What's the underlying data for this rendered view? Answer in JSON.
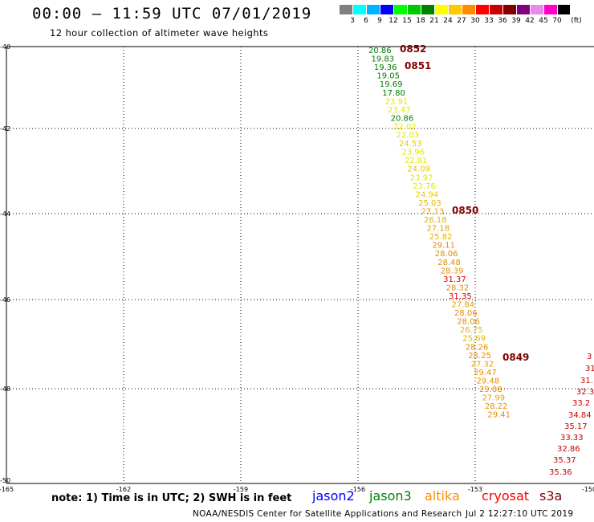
{
  "header": {
    "title": "00:00 – 11:59 UTC 07/01/2019",
    "subtitle": "12 hour collection of altimeter wave heights"
  },
  "color_scale": {
    "unit": "(ft)",
    "colors": [
      "#808080",
      "#00ffff",
      "#00b4ff",
      "#0000ff",
      "#00ff00",
      "#00c800",
      "#008000",
      "#ffff00",
      "#ffc800",
      "#ff8c00",
      "#ff0000",
      "#c80000",
      "#800000",
      "#800080",
      "#e68ce6",
      "#ff00c8",
      "#000000"
    ],
    "labels": [
      "3",
      "6",
      "9",
      "12",
      "15",
      "18",
      "21",
      "24",
      "27",
      "30",
      "33",
      "36",
      "39",
      "42",
      "45",
      "70"
    ]
  },
  "map": {
    "lat_ticks": [
      "-40",
      "-42",
      "-44",
      "-46",
      "-48",
      "-50"
    ],
    "lon_ticks": [
      "-165",
      "-162",
      "-159",
      "-156",
      "-153",
      "-150"
    ]
  },
  "tracks": [
    {
      "label_color": "#800000",
      "time_labels": [
        "0852",
        "0851",
        "0850",
        "0849"
      ],
      "points": [
        {
          "v": "20.86",
          "c": "#008000"
        },
        {
          "v": "19.83",
          "c": "#008000"
        },
        {
          "v": "19.36",
          "c": "#008000"
        },
        {
          "v": "19.05",
          "c": "#008000"
        },
        {
          "v": "19.69",
          "c": "#008000"
        },
        {
          "v": "17.80",
          "c": "#008000"
        },
        {
          "v": "23.91",
          "c": "#e6e600"
        },
        {
          "v": "23.47",
          "c": "#e6e600"
        },
        {
          "v": "20.86",
          "c": "#008000"
        },
        {
          "v": "22.02",
          "c": "#e6e600"
        },
        {
          "v": "22.03",
          "c": "#e6e600"
        },
        {
          "v": "24.53",
          "c": "#e6c800"
        },
        {
          "v": "23.96",
          "c": "#e6e600"
        },
        {
          "v": "22.81",
          "c": "#e6e600"
        },
        {
          "v": "24.09",
          "c": "#e6c800"
        },
        {
          "v": "23.97",
          "c": "#e6e600"
        },
        {
          "v": "23.76",
          "c": "#e6e600"
        },
        {
          "v": "24.94",
          "c": "#e6c800"
        },
        {
          "v": "25.03",
          "c": "#e6b400"
        },
        {
          "v": "27.13",
          "c": "#e6a000"
        },
        {
          "v": "26.18",
          "c": "#e6b400"
        },
        {
          "v": "27.18",
          "c": "#e6a000"
        },
        {
          "v": "25.82",
          "c": "#e6b400"
        },
        {
          "v": "29.11",
          "c": "#e68c00"
        },
        {
          "v": "28.06",
          "c": "#e68c00"
        },
        {
          "v": "28.48",
          "c": "#e68c00"
        },
        {
          "v": "28.39",
          "c": "#e68c00"
        },
        {
          "v": "31.37",
          "c": "#e00000"
        },
        {
          "v": "28.32",
          "c": "#e68c00"
        },
        {
          "v": "31.35",
          "c": "#e00000"
        },
        {
          "v": "27.84",
          "c": "#e6a000"
        },
        {
          "v": "28.06",
          "c": "#e68c00"
        },
        {
          "v": "28.06",
          "c": "#e68c00"
        },
        {
          "v": "26.75",
          "c": "#e6b400"
        },
        {
          "v": "25.69",
          "c": "#e6b400"
        },
        {
          "v": "28.26",
          "c": "#e68c00"
        },
        {
          "v": "28.25",
          "c": "#e68c00"
        },
        {
          "v": "27.32",
          "c": "#e6a000"
        },
        {
          "v": "29.47",
          "c": "#e68c00"
        },
        {
          "v": "29.48",
          "c": "#e68c00"
        },
        {
          "v": "29.08",
          "c": "#e68c00"
        },
        {
          "v": "27.99",
          "c": "#e6a000"
        },
        {
          "v": "28.22",
          "c": "#e68c00"
        },
        {
          "v": "29.41",
          "c": "#e68c00"
        }
      ]
    },
    {
      "label_color": "#800000",
      "points": [
        {
          "v": "3",
          "c": "#c80000"
        },
        {
          "v": "31",
          "c": "#c80000"
        },
        {
          "v": "31.",
          "c": "#c80000"
        },
        {
          "v": "32.3",
          "c": "#c80000"
        },
        {
          "v": "33.2",
          "c": "#c80000"
        },
        {
          "v": "34.84",
          "c": "#c80000"
        },
        {
          "v": "35.17",
          "c": "#c80000"
        },
        {
          "v": "33.33",
          "c": "#c80000"
        },
        {
          "v": "32.86",
          "c": "#c80000"
        },
        {
          "v": "35.37",
          "c": "#c80000"
        },
        {
          "v": "35.36",
          "c": "#c80000"
        }
      ]
    }
  ],
  "note": "note: 1) Time is in UTC; 2) SWH is in feet",
  "legend": [
    {
      "name": "jason2",
      "color": "#0000ff"
    },
    {
      "name": "jason3",
      "color": "#008000"
    },
    {
      "name": "altika",
      "color": "#ff8c00"
    },
    {
      "name": "cryosat",
      "color": "#ff0000"
    },
    {
      "name": "s3a",
      "color": "#800000"
    }
  ],
  "footer": {
    "credit": "NOAA/NESDIS Center for Satellite Applications and Research",
    "timestamp": "Jul  2 12:27:10 UTC 2019"
  }
}
